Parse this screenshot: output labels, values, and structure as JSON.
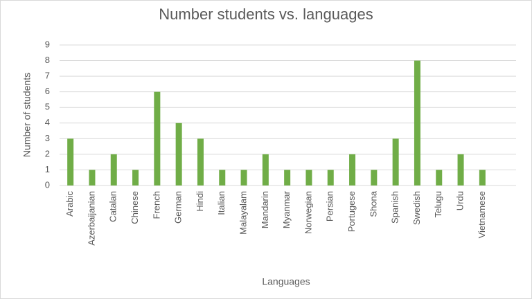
{
  "chart_data": {
    "type": "bar",
    "title": "Number students vs. languages",
    "x_label": "Languages",
    "y_label": "Number of students",
    "categories": [
      "Arabic",
      "Azerbaijanian",
      "Catalan",
      "Chinese",
      "French",
      "German",
      "Hindi",
      "Italian",
      "Malayalam",
      "Mandarin",
      "Myanmar",
      "Norwegian",
      "Persian",
      "Portugese",
      "Shona",
      "Spanish",
      "Swedish",
      "Telugu",
      "Urdu",
      "Vietnamese"
    ],
    "values": [
      3,
      1,
      2,
      1,
      6,
      4,
      3,
      1,
      1,
      2,
      1,
      1,
      1,
      2,
      1,
      3,
      8,
      1,
      2,
      1
    ],
    "color": "#70ad47",
    "ylim": [
      0,
      9
    ],
    "yticks": [
      0,
      1,
      2,
      3,
      4,
      5,
      6,
      7,
      8,
      9
    ],
    "grid": true
  }
}
